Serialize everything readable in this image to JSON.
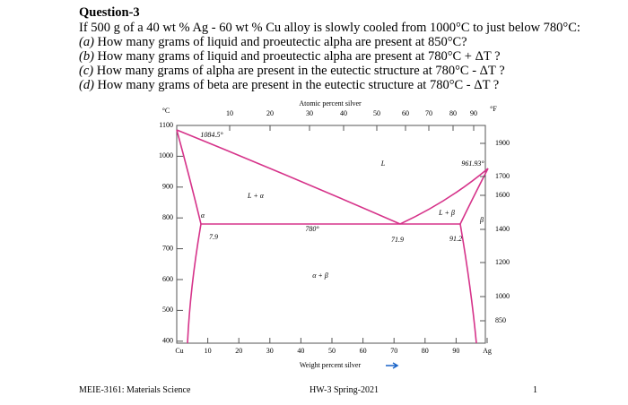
{
  "header": {
    "title": "Question-3",
    "intro": "If 500 g of a 40 wt % Ag - 60 wt % Cu alloy is slowly cooled from 1000°C to just below 780°C:"
  },
  "questions": [
    {
      "label": "(a)",
      "text": "How many grams of liquid and proeutectic alpha are present at 850°C?"
    },
    {
      "label": "(b)",
      "text": "How many grams of liquid and proeutectic alpha are present at 780°C + ΔT ?"
    },
    {
      "label": "(c)",
      "text": "How many grams of alpha are present in the eutectic structure at 780°C - ΔT ?"
    },
    {
      "label": "(d)",
      "text": "How many grams of beta are present in the eutectic structure at 780°C - ΔT ?"
    }
  ],
  "figure": {
    "top_axis_title": "Atomic percent silver",
    "top_ticks": [
      "10",
      "20",
      "30",
      "40",
      "50",
      "60",
      "70",
      "80",
      "90"
    ],
    "left_unit": "°C",
    "left_ticks": [
      "1100",
      "1000",
      "900",
      "800",
      "700",
      "600",
      "500",
      "400"
    ],
    "right_unit": "°F",
    "right_ticks": [
      "1900",
      "1700",
      "1600",
      "1400",
      "1200",
      "1000",
      "850"
    ],
    "bottom_ticks": [
      "Cu",
      "10",
      "20",
      "30",
      "40",
      "50",
      "60",
      "70",
      "80",
      "90",
      "Ag"
    ],
    "bottom_axis_title": "Weight percent silver",
    "labels": [
      "L",
      "L + α",
      "α",
      "7.9",
      "780°",
      "71.9",
      "L + β",
      "β",
      "91.2",
      "961.93°",
      "1084.5°",
      "α + β"
    ]
  },
  "footer": {
    "course": "MEIE-3161: Materials Science",
    "assignment": "HW-3 Spring-2021",
    "page": "1"
  }
}
